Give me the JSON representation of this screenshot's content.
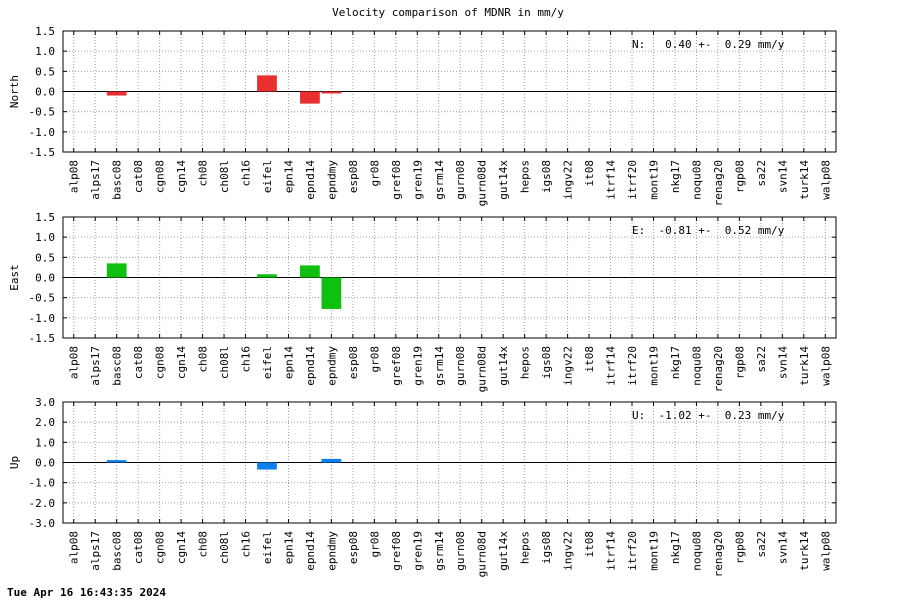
{
  "chart_data": [
    {
      "type": "bar",
      "title": "Velocity comparison of MDNR in mm/y",
      "ylabel": "North",
      "ylim": [
        -1.5,
        1.5
      ],
      "yticks": [
        "1.5",
        "1.0",
        "0.5",
        "0.0",
        "-0.5",
        "-1.0",
        "-1.5"
      ],
      "annotation": "N:   0.40 +-  0.29 mm/y",
      "color": "#e83030",
      "grid": true,
      "categories": [
        "alp08",
        "alps17",
        "basc08",
        "cat08",
        "cgn08",
        "cgn14",
        "ch08",
        "ch08l",
        "ch16",
        "eifel",
        "epn14",
        "epnd14",
        "epndmy",
        "esp08",
        "gr08",
        "gref08",
        "gren19",
        "gsrm14",
        "gurn08",
        "gurn08d",
        "gut14x",
        "hepos",
        "igs08",
        "ingv22",
        "it08",
        "itrf14",
        "itrf20",
        "mont19",
        "nkg17",
        "noqu08",
        "renag20",
        "rgp08",
        "sa22",
        "svn14",
        "turk14",
        "walp08"
      ],
      "values": [
        0,
        0,
        -0.1,
        0,
        0,
        0,
        0,
        0,
        0,
        0.4,
        0,
        -0.3,
        -0.05,
        0,
        0,
        0,
        0,
        0,
        0,
        0,
        0,
        0,
        0,
        0,
        0,
        0,
        0,
        0,
        0,
        0,
        0,
        0,
        0,
        0,
        0,
        0
      ]
    },
    {
      "type": "bar",
      "ylabel": "East",
      "ylim": [
        -1.5,
        1.5
      ],
      "yticks": [
        "1.5",
        "1.0",
        "0.5",
        "0.0",
        "-0.5",
        "-1.0",
        "-1.5"
      ],
      "annotation": "E:  -0.81 +-  0.52 mm/y",
      "color": "#10c010",
      "grid": true,
      "categories": [
        "alp08",
        "alps17",
        "basc08",
        "cat08",
        "cgn08",
        "cgn14",
        "ch08",
        "ch08l",
        "ch16",
        "eifel",
        "epn14",
        "epnd14",
        "epndmy",
        "esp08",
        "gr08",
        "gref08",
        "gren19",
        "gsrm14",
        "gurn08",
        "gurn08d",
        "gut14x",
        "hepos",
        "igs08",
        "ingv22",
        "it08",
        "itrf14",
        "itrf20",
        "mont19",
        "nkg17",
        "noqu08",
        "renag20",
        "rgp08",
        "sa22",
        "svn14",
        "turk14",
        "walp08"
      ],
      "values": [
        0,
        0,
        0.35,
        0,
        0,
        0,
        0,
        0,
        0,
        0.08,
        0,
        0.3,
        -0.78,
        0,
        0,
        0,
        0,
        0,
        0,
        0,
        0,
        0,
        0,
        0,
        0,
        0,
        0,
        0,
        0,
        0,
        0,
        0,
        0,
        0,
        0,
        0
      ]
    },
    {
      "type": "bar",
      "ylabel": "Up",
      "ylim": [
        -3.0,
        3.0
      ],
      "yticks": [
        "3.0",
        "2.0",
        "1.0",
        "0.0",
        "-1.0",
        "-2.0",
        "-3.0"
      ],
      "annotation": "U:  -1.02 +-  0.23 mm/y",
      "color": "#1080f0",
      "grid": true,
      "categories": [
        "alp08",
        "alps17",
        "basc08",
        "cat08",
        "cgn08",
        "cgn14",
        "ch08",
        "ch08l",
        "ch16",
        "eifel",
        "epn14",
        "epnd14",
        "epndmy",
        "esp08",
        "gr08",
        "gref08",
        "gren19",
        "gsrm14",
        "gurn08",
        "gurn08d",
        "gut14x",
        "hepos",
        "igs08",
        "ingv22",
        "it08",
        "itrf14",
        "itrf20",
        "mont19",
        "nkg17",
        "noqu08",
        "renag20",
        "rgp08",
        "sa22",
        "svn14",
        "turk14",
        "walp08"
      ],
      "values": [
        0,
        0,
        0.12,
        0,
        0,
        0,
        0,
        0,
        0,
        -0.35,
        0,
        0,
        0.18,
        0,
        0,
        0,
        0,
        0,
        0,
        0,
        0,
        0,
        0,
        0,
        0,
        0,
        0,
        0,
        0,
        0,
        0,
        0,
        0,
        0,
        0,
        0
      ]
    }
  ],
  "footer": "Tue Apr 16 16:43:35 2024"
}
